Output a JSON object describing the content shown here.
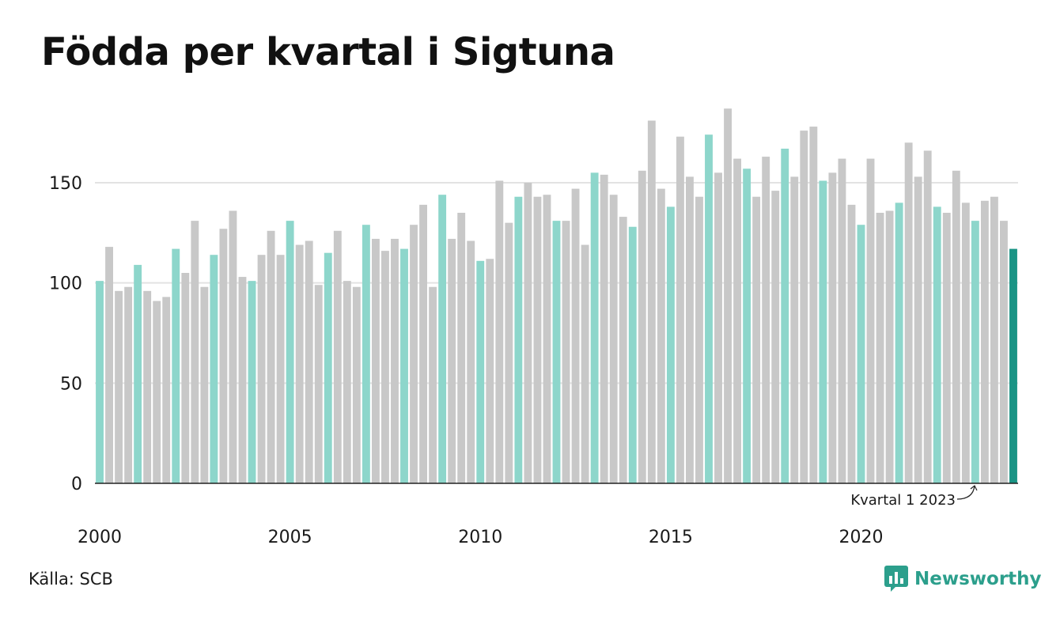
{
  "title": "Födda per kvartal i Sigtuna",
  "source": "Källa: SCB",
  "brand": "Newsworthy",
  "colors": {
    "q1": "#8dd6cb",
    "other": "#c8c8c8",
    "latest": "#1a9485",
    "grid": "#e3e3e3",
    "axis": "#222222",
    "brand": "#2c9f8c"
  },
  "chart_data": {
    "type": "bar",
    "title": "Födda per kvartal i Sigtuna",
    "xlabel": "",
    "ylabel": "",
    "ylim": [
      0,
      190
    ],
    "yticks": [
      0,
      50,
      100,
      150
    ],
    "xticks": [
      {
        "label": "2000",
        "year": 2000
      },
      {
        "label": "2005",
        "year": 2005
      },
      {
        "label": "2010",
        "year": 2010
      },
      {
        "label": "2015",
        "year": 2015
      },
      {
        "label": "2020",
        "year": 2020
      }
    ],
    "start": {
      "year": 2000,
      "quarter": 1
    },
    "grid": true,
    "highlight": "Q1 bars highlighted in teal, latest bar in dark teal",
    "annotation": {
      "text": "Kvartal 1 2023"
    },
    "values": [
      101,
      118,
      96,
      98,
      109,
      96,
      91,
      93,
      117,
      105,
      131,
      98,
      114,
      127,
      136,
      103,
      101,
      114,
      126,
      114,
      131,
      119,
      121,
      99,
      115,
      126,
      101,
      98,
      129,
      122,
      116,
      122,
      117,
      129,
      139,
      98,
      144,
      122,
      135,
      121,
      111,
      112,
      151,
      130,
      143,
      150,
      143,
      144,
      131,
      131,
      147,
      119,
      155,
      154,
      144,
      133,
      128,
      156,
      181,
      147,
      138,
      173,
      153,
      143,
      174,
      155,
      187,
      162,
      157,
      143,
      163,
      146,
      167,
      153,
      176,
      178,
      151,
      155,
      162,
      139,
      129,
      162,
      135,
      136,
      140,
      170,
      153,
      166,
      138,
      135,
      156,
      140,
      131,
      141,
      143,
      131,
      117
    ]
  }
}
